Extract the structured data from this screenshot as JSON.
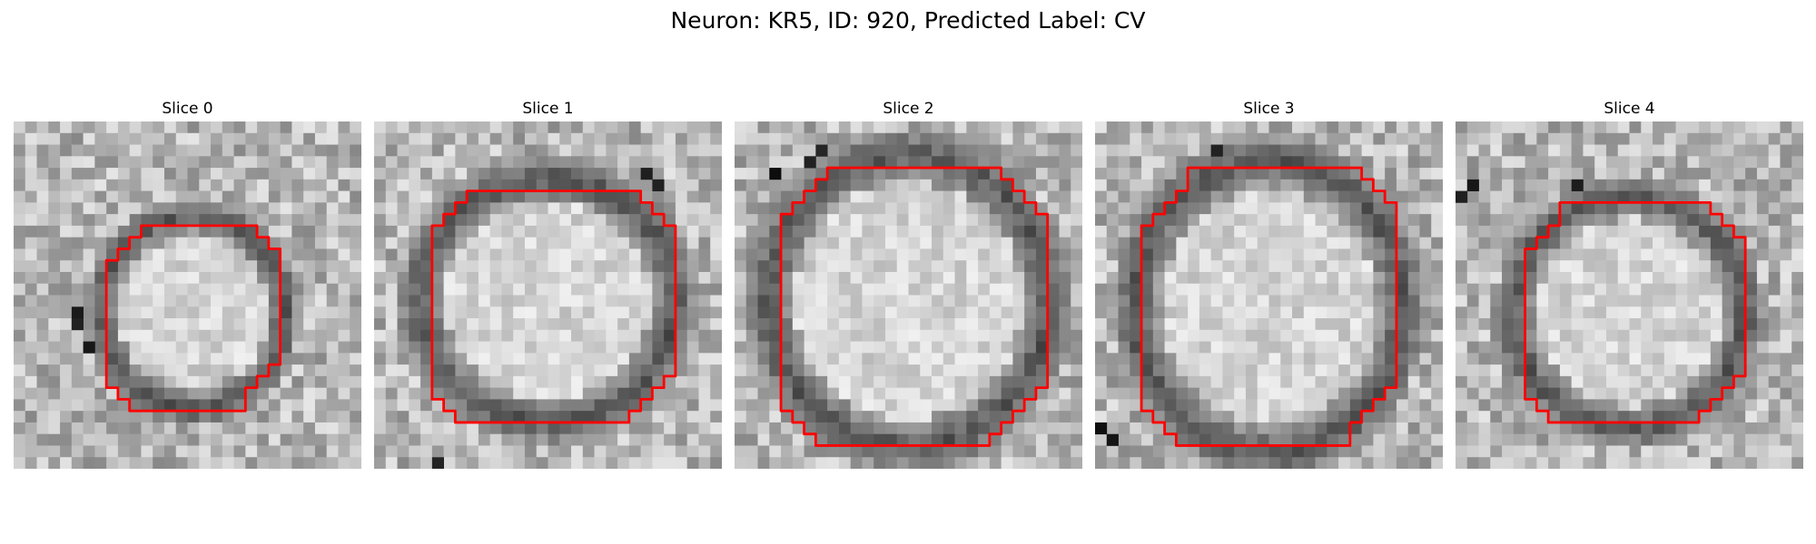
{
  "figure": {
    "title": "Neuron: KR5, ID: 920, Predicted Label: CV"
  },
  "panels": [
    {
      "title": "Slice 0"
    },
    {
      "title": "Slice 1"
    },
    {
      "title": "Slice 2"
    },
    {
      "title": "Slice 3"
    },
    {
      "title": "Slice 4"
    }
  ],
  "colors": {
    "contour": "#ff0000",
    "background": "#ffffff"
  },
  "image": {
    "colormap": "grayscale",
    "axes": "off"
  }
}
